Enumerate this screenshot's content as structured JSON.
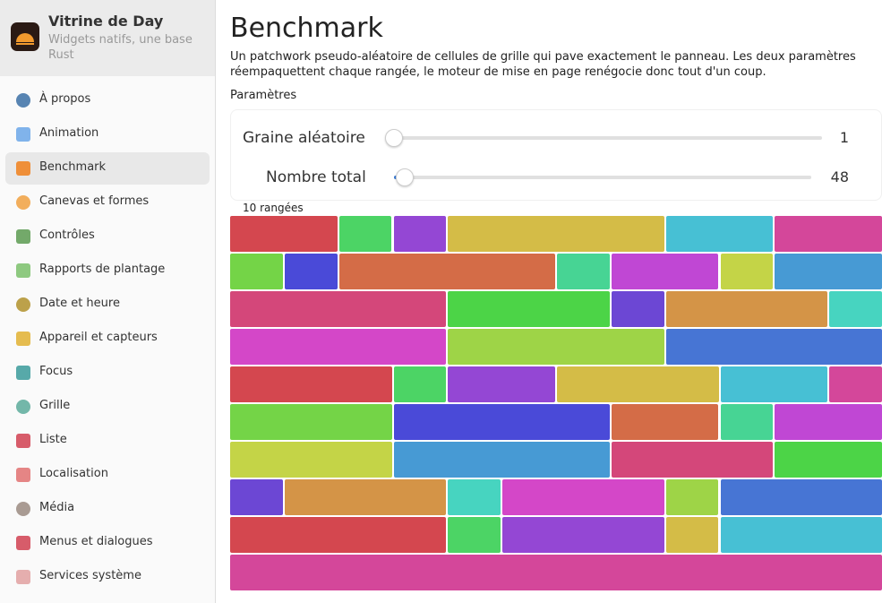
{
  "sidebar": {
    "app_title": "Vitrine de Day",
    "app_subtitle": "Widgets natifs, une base Rust",
    "items": [
      "À propos",
      "Animation",
      "Benchmark",
      "Canevas et formes",
      "Contrôles",
      "Rapports de plantage",
      "Date et heure",
      "Appareil et capteurs",
      "Focus",
      "Grille",
      "Liste",
      "Localisation",
      "Média",
      "Menus et dialogues",
      "Services système"
    ],
    "selected": 2
  },
  "main": {
    "title": "Benchmark",
    "description": "Un patchwork pseudo-aléatoire de cellules de grille qui pave exactement le panneau. Les deux paramètres réempaquettent chaque rangée, le moteur de mise en page renégocie donc tout d'un coup.",
    "section_label": "Paramètres",
    "controls": [
      {
        "label": "Graine aléatoire",
        "value": 1
      },
      {
        "label": "Nombre total",
        "value": 48
      }
    ],
    "rows_label": "10 rangées"
  }
}
